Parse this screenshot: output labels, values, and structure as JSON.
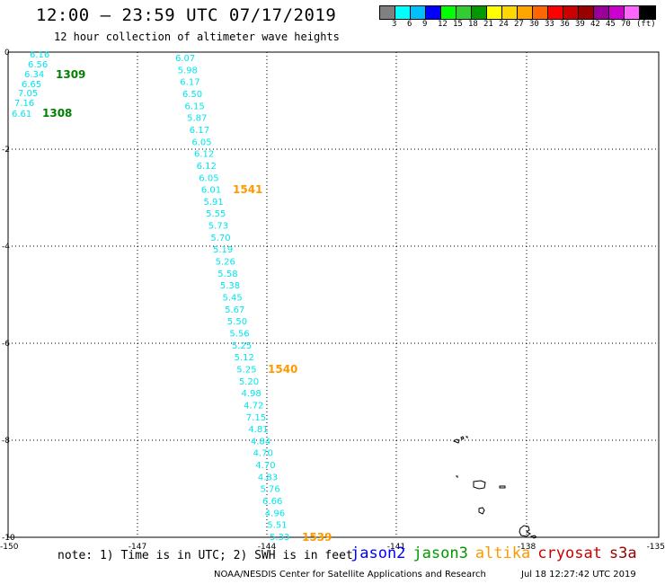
{
  "title": "12:00 – 23:59 UTC 07/17/2019",
  "subtitle": "12 hour collection of altimeter wave heights",
  "colorbar": {
    "colors": [
      "#808080",
      "#00ffff",
      "#00bfff",
      "#0000ff",
      "#00ff00",
      "#33cc33",
      "#009900",
      "#ffff00",
      "#ffd700",
      "#ffa500",
      "#ff6600",
      "#ff0000",
      "#cc0000",
      "#990000",
      "#990099",
      "#cc00cc",
      "#ff66ff",
      "#000000"
    ],
    "labels": [
      "3",
      "6",
      "9",
      "12",
      "15",
      "18",
      "21",
      "24",
      "27",
      "30",
      "33",
      "36",
      "39",
      "42",
      "45",
      "70",
      "(ft)"
    ]
  },
  "map": {
    "lon_ticks": [
      "-150",
      "-147",
      "-144",
      "-141",
      "-138",
      "-135"
    ],
    "lat_ticks": [
      "0",
      "-2",
      "-4",
      "-6",
      "-8",
      "-10"
    ],
    "tracks": [
      {
        "satellite": "jason3",
        "color": "#00e5ee",
        "values": [
          "6.16",
          "6.56",
          "6.34",
          "6.65",
          "7.05",
          "7.16",
          "6.61"
        ],
        "time_labels": [
          {
            "text": "1309",
            "color": "#008000"
          },
          {
            "text": "1308",
            "color": "#008000"
          }
        ]
      },
      {
        "satellite": "altika",
        "color": "#00e5ee",
        "values": [
          "6.07",
          "5.98",
          "6.17",
          "6.50",
          "6.15",
          "5.87",
          "6.17",
          "6.05",
          "6.12",
          "6.12",
          "6.05",
          "6.01",
          "5.91",
          "5.55",
          "5.73",
          "5.70",
          "5.19",
          "5.26",
          "5.58",
          "5.38",
          "5.45",
          "5.67",
          "5.50",
          "5.56",
          "5.25",
          "5.12",
          "5.25",
          "5.20",
          "4.98",
          "4.72",
          "7.15",
          "4.81",
          "4.84",
          "4.70",
          "4.70",
          "4.83",
          "5.76",
          "6.66",
          "4.96",
          "5.51",
          "5.33"
        ],
        "time_labels": [
          {
            "text": "1541",
            "color": "#ff9900"
          },
          {
            "text": "1540",
            "color": "#ff9900"
          },
          {
            "text": "1539",
            "color": "#ff9900"
          }
        ]
      }
    ]
  },
  "note": "note: 1) Time is in UTC; 2) SWH is in feet",
  "satellites": [
    {
      "name": "jason2",
      "color": "#0000ff"
    },
    {
      "name": "jason3",
      "color": "#009900"
    },
    {
      "name": "altika",
      "color": "#ff9900"
    },
    {
      "name": "cryosat",
      "color": "#cc0000"
    },
    {
      "name": "s3a",
      "color": "#990000"
    }
  ],
  "credit": "NOAA/NESDIS Center for Satellite Applications and Research",
  "timestamp": "Jul 18 12:27:42 UTC 2019"
}
